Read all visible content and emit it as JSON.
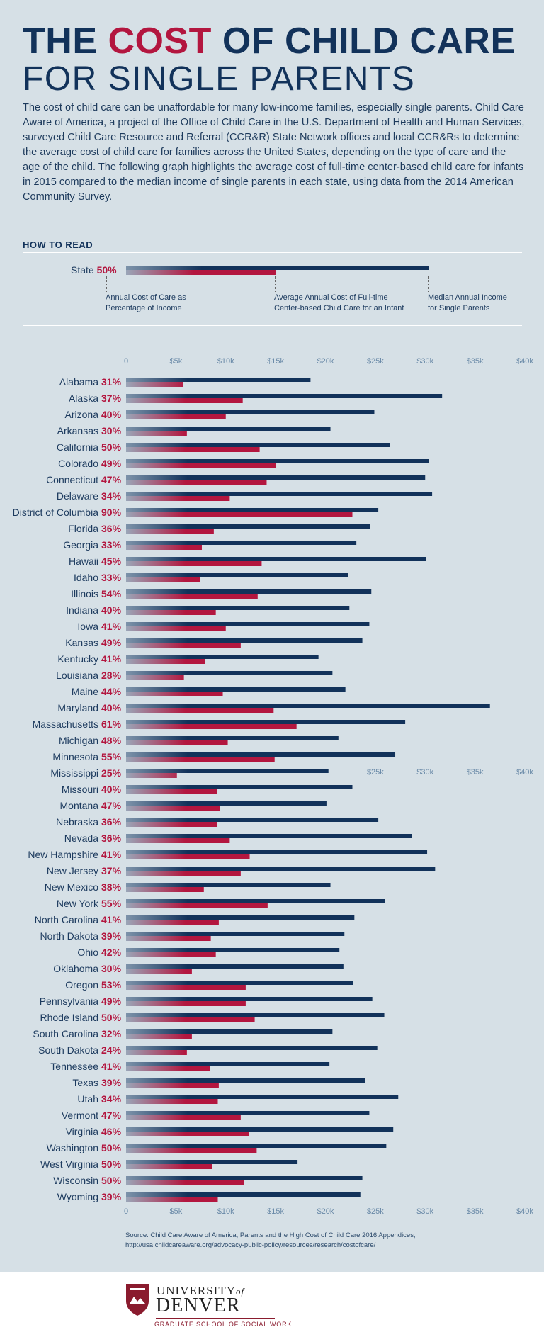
{
  "header": {
    "title_part1": "THE ",
    "title_accent": "COST",
    "title_part2": " OF CHILD CARE",
    "subtitle": "FOR SINGLE PARENTS",
    "intro": "The cost of child care can be unaffordable for many low-income families, especially single parents. Child Care Aware of America, a project of the Office of Child Care in the U.S. Department of Health and Human Services, surveyed Child Care Resource and Referral (CCR&R) State Network offices and local CCR&Rs to determine the average cost of child care for families across the United States, depending on the type of care and the age of the child. The following graph highlights the average cost of full-time center-based child care for infants in 2015 compared to the median income of single parents in each state, using data from the 2014 American Community Survey."
  },
  "how_to_read": {
    "title": "HOW TO READ",
    "state_label": "State",
    "pct_label": "50%",
    "label_pct": [
      "Annual Cost of Care as",
      "Percentage of Income"
    ],
    "label_cost": [
      "Average Annual Cost of Full-time",
      "Center-based Child Care for an Infant"
    ],
    "label_income": [
      "Median Annual Income",
      "for Single Parents"
    ]
  },
  "colors": {
    "income": "#12325a",
    "cost": "#b3163f",
    "background": "#d6e0e6",
    "axis_text": "#6a8aa8"
  },
  "chart_data": {
    "type": "bar",
    "orientation": "horizontal",
    "x_ticks": [
      "0",
      "$5k",
      "$10k",
      "$15k",
      "$20k",
      "$25k",
      "$30k",
      "$35k",
      "$40k"
    ],
    "mid_ticks": [
      "$25k",
      "$30k",
      "$35k",
      "$40k"
    ],
    "xlim": [
      0,
      40000
    ],
    "series": [
      {
        "name": "Median Annual Income for Single Parents",
        "key": "income"
      },
      {
        "name": "Average Annual Cost of Full-time Center-based Child Care for an Infant",
        "key": "cost"
      }
    ],
    "rows": [
      {
        "state": "Alabama",
        "pct": "31%",
        "income": 18500,
        "cost": 5700
      },
      {
        "state": "Alaska",
        "pct": "37%",
        "income": 31700,
        "cost": 11700
      },
      {
        "state": "Arizona",
        "pct": "40%",
        "income": 24900,
        "cost": 10000
      },
      {
        "state": "Arkansas",
        "pct": "30%",
        "income": 20500,
        "cost": 6100
      },
      {
        "state": "California",
        "pct": "50%",
        "income": 26500,
        "cost": 13400
      },
      {
        "state": "Colorado",
        "pct": "49%",
        "income": 30400,
        "cost": 15000
      },
      {
        "state": "Connecticut",
        "pct": "47%",
        "income": 30000,
        "cost": 14100
      },
      {
        "state": "Delaware",
        "pct": "34%",
        "income": 30700,
        "cost": 10400
      },
      {
        "state": "District of Columbia",
        "pct": "90%",
        "income": 25300,
        "cost": 22700
      },
      {
        "state": "Florida",
        "pct": "36%",
        "income": 24500,
        "cost": 8800
      },
      {
        "state": "Georgia",
        "pct": "33%",
        "income": 23100,
        "cost": 7600
      },
      {
        "state": "Hawaii",
        "pct": "45%",
        "income": 30100,
        "cost": 13600
      },
      {
        "state": "Idaho",
        "pct": "33%",
        "income": 22300,
        "cost": 7400
      },
      {
        "state": "Illinois",
        "pct": "54%",
        "income": 24600,
        "cost": 13200
      },
      {
        "state": "Indiana",
        "pct": "40%",
        "income": 22400,
        "cost": 9000
      },
      {
        "state": "Iowa",
        "pct": "41%",
        "income": 24400,
        "cost": 10000
      },
      {
        "state": "Kansas",
        "pct": "49%",
        "income": 23700,
        "cost": 11500
      },
      {
        "state": "Kentucky",
        "pct": "41%",
        "income": 19300,
        "cost": 7900
      },
      {
        "state": "Louisiana",
        "pct": "28%",
        "income": 20700,
        "cost": 5800
      },
      {
        "state": "Maine",
        "pct": "44%",
        "income": 22000,
        "cost": 9700
      },
      {
        "state": "Maryland",
        "pct": "40%",
        "income": 36500,
        "cost": 14800
      },
      {
        "state": "Massachusetts",
        "pct": "61%",
        "income": 28000,
        "cost": 17100
      },
      {
        "state": "Michigan",
        "pct": "48%",
        "income": 21300,
        "cost": 10200
      },
      {
        "state": "Minnesota",
        "pct": "55%",
        "income": 27000,
        "cost": 14900
      },
      {
        "state": "Mississippi",
        "pct": "25%",
        "income": 20300,
        "cost": 5100
      },
      {
        "state": "Missouri",
        "pct": "40%",
        "income": 22700,
        "cost": 9100
      },
      {
        "state": "Montana",
        "pct": "47%",
        "income": 20100,
        "cost": 9400
      },
      {
        "state": "Nebraska",
        "pct": "36%",
        "income": 25300,
        "cost": 9100
      },
      {
        "state": "Nevada",
        "pct": "36%",
        "income": 28700,
        "cost": 10400
      },
      {
        "state": "New Hampshire",
        "pct": "41%",
        "income": 30200,
        "cost": 12400
      },
      {
        "state": "New Jersey",
        "pct": "37%",
        "income": 31000,
        "cost": 11500
      },
      {
        "state": "New Mexico",
        "pct": "38%",
        "income": 20500,
        "cost": 7800
      },
      {
        "state": "New York",
        "pct": "55%",
        "income": 26000,
        "cost": 14200
      },
      {
        "state": "North Carolina",
        "pct": "41%",
        "income": 22900,
        "cost": 9300
      },
      {
        "state": "North Dakota",
        "pct": "39%",
        "income": 21900,
        "cost": 8500
      },
      {
        "state": "Ohio",
        "pct": "42%",
        "income": 21400,
        "cost": 9000
      },
      {
        "state": "Oklahoma",
        "pct": "30%",
        "income": 21800,
        "cost": 6600
      },
      {
        "state": "Oregon",
        "pct": "53%",
        "income": 22800,
        "cost": 12000
      },
      {
        "state": "Pennsylvania",
        "pct": "49%",
        "income": 24700,
        "cost": 12000
      },
      {
        "state": "Rhode Island",
        "pct": "50%",
        "income": 25900,
        "cost": 12900
      },
      {
        "state": "South Carolina",
        "pct": "32%",
        "income": 20700,
        "cost": 6600
      },
      {
        "state": "South Dakota",
        "pct": "24%",
        "income": 25200,
        "cost": 6100
      },
      {
        "state": "Tennessee",
        "pct": "41%",
        "income": 20400,
        "cost": 8400
      },
      {
        "state": "Texas",
        "pct": "39%",
        "income": 24000,
        "cost": 9300
      },
      {
        "state": "Utah",
        "pct": "34%",
        "income": 27300,
        "cost": 9200
      },
      {
        "state": "Vermont",
        "pct": "47%",
        "income": 24400,
        "cost": 11500
      },
      {
        "state": "Virginia",
        "pct": "46%",
        "income": 26800,
        "cost": 12300
      },
      {
        "state": "Washington",
        "pct": "50%",
        "income": 26100,
        "cost": 13100
      },
      {
        "state": "West Virginia",
        "pct": "50%",
        "income": 17200,
        "cost": 8600
      },
      {
        "state": "Wisconsin",
        "pct": "50%",
        "income": 23700,
        "cost": 11800
      },
      {
        "state": "Wyoming",
        "pct": "39%",
        "income": 23500,
        "cost": 9200
      }
    ]
  },
  "source": {
    "line1": "Source: Child Care Aware of America, Parents and the High Cost of Child Care 2016 Appendices;",
    "line2": "http://usa.childcareaware.org/advocacy-public-policy/resources/research/costofcare/"
  },
  "footer": {
    "univ": "UNIVERSITY",
    "of": "of",
    "denver": "DENVER",
    "school": "GRADUATE SCHOOL OF SOCIAL WORK"
  }
}
